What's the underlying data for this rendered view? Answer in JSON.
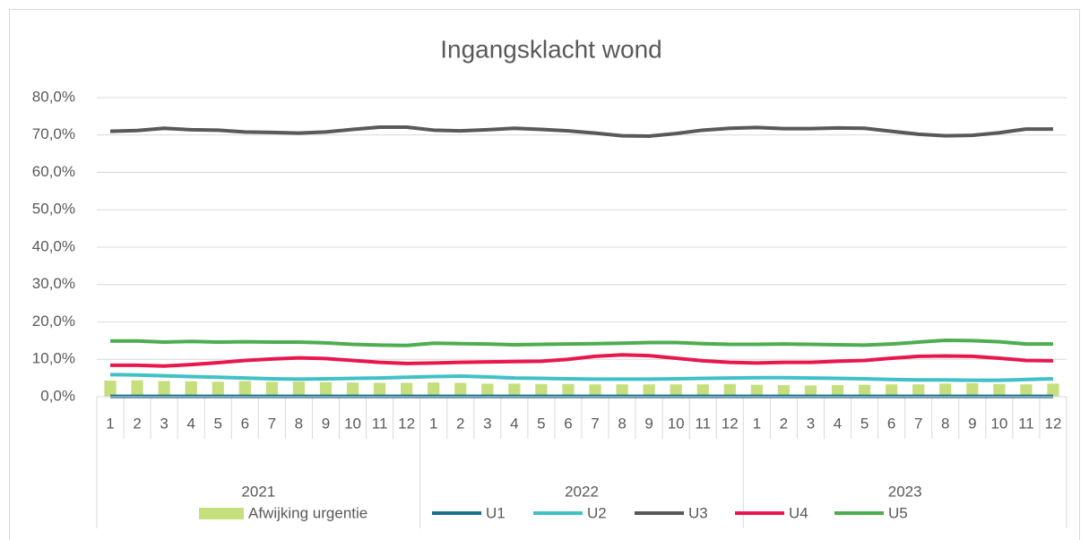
{
  "chart_data": {
    "type": "bar-line",
    "title": "Ingangsklacht wond",
    "categories": [
      "1",
      "2",
      "3",
      "4",
      "5",
      "6",
      "7",
      "8",
      "9",
      "10",
      "11",
      "12",
      "1",
      "2",
      "3",
      "4",
      "5",
      "6",
      "7",
      "8",
      "9",
      "10",
      "11",
      "12",
      "1",
      "2",
      "3",
      "4",
      "5",
      "6",
      "7",
      "8",
      "9",
      "10",
      "11",
      "12"
    ],
    "groups": [
      "2021",
      "2022",
      "2023"
    ],
    "ylim": [
      0,
      80
    ],
    "yticks": [
      {
        "value": 0,
        "label": "0,0%"
      },
      {
        "value": 10,
        "label": "10,0%"
      },
      {
        "value": 20,
        "label": "20,0%"
      },
      {
        "value": 30,
        "label": "30,0%"
      },
      {
        "value": 40,
        "label": "40,0%"
      },
      {
        "value": 50,
        "label": "50,0%"
      },
      {
        "value": 60,
        "label": "60,0%"
      },
      {
        "value": 70,
        "label": "70,0%"
      },
      {
        "value": 80,
        "label": "80,0%"
      }
    ],
    "grid": true,
    "legend": "bottom",
    "series": [
      {
        "name": "Afwijking urgentie",
        "type": "bar",
        "color": "#c4df7c",
        "values": [
          4.3,
          4.4,
          4.2,
          4.1,
          4.0,
          4.2,
          4.0,
          4.0,
          3.9,
          3.8,
          3.7,
          3.7,
          3.8,
          3.7,
          3.5,
          3.5,
          3.4,
          3.4,
          3.3,
          3.3,
          3.3,
          3.3,
          3.3,
          3.4,
          3.2,
          3.1,
          3.0,
          3.1,
          3.2,
          3.3,
          3.3,
          3.5,
          3.6,
          3.4,
          3.3,
          3.5
        ]
      },
      {
        "name": "U1",
        "type": "line",
        "color": "#1b6f8e",
        "values": [
          0.1,
          0.1,
          0.1,
          0.1,
          0.1,
          0.1,
          0.1,
          0.1,
          0.1,
          0.1,
          0.1,
          0.1,
          0.1,
          0.1,
          0.1,
          0.1,
          0.1,
          0.1,
          0.1,
          0.1,
          0.1,
          0.1,
          0.1,
          0.1,
          0.1,
          0.1,
          0.1,
          0.1,
          0.1,
          0.1,
          0.1,
          0.1,
          0.1,
          0.1,
          0.1,
          0.1
        ]
      },
      {
        "name": "U2",
        "type": "line",
        "color": "#40c1c8",
        "values": [
          5.9,
          5.8,
          5.6,
          5.4,
          5.2,
          5.0,
          4.8,
          4.7,
          4.8,
          4.9,
          5.0,
          5.2,
          5.4,
          5.5,
          5.3,
          5.0,
          4.9,
          4.8,
          4.7,
          4.7,
          4.7,
          4.8,
          4.9,
          5.0,
          5.1,
          5.1,
          5.0,
          4.9,
          4.8,
          4.6,
          4.5,
          4.5,
          4.4,
          4.4,
          4.6,
          4.8
        ]
      },
      {
        "name": "U3",
        "type": "line",
        "color": "#595959",
        "values": [
          71.0,
          71.2,
          71.8,
          71.4,
          71.3,
          70.8,
          70.7,
          70.5,
          70.8,
          71.5,
          72.1,
          72.1,
          71.3,
          71.1,
          71.4,
          71.8,
          71.5,
          71.1,
          70.5,
          69.8,
          69.7,
          70.4,
          71.3,
          71.8,
          72.0,
          71.7,
          71.7,
          71.9,
          71.8,
          71.0,
          70.2,
          69.8,
          69.9,
          70.6,
          71.6,
          71.6
        ]
      },
      {
        "name": "U4",
        "type": "line",
        "color": "#e8174e",
        "values": [
          8.4,
          8.4,
          8.2,
          8.6,
          9.1,
          9.7,
          10.1,
          10.4,
          10.2,
          9.7,
          9.2,
          8.9,
          9.0,
          9.2,
          9.3,
          9.4,
          9.5,
          10.0,
          10.8,
          11.2,
          11.0,
          10.3,
          9.6,
          9.2,
          9.0,
          9.2,
          9.2,
          9.5,
          9.7,
          10.3,
          10.8,
          10.9,
          10.8,
          10.3,
          9.7,
          9.6
        ]
      },
      {
        "name": "U5",
        "type": "line",
        "color": "#4cae4f",
        "values": [
          14.9,
          14.9,
          14.6,
          14.8,
          14.6,
          14.7,
          14.6,
          14.6,
          14.4,
          14.0,
          13.8,
          13.7,
          14.3,
          14.2,
          14.1,
          13.9,
          14.0,
          14.1,
          14.2,
          14.3,
          14.5,
          14.5,
          14.2,
          14.0,
          14.0,
          14.1,
          14.0,
          13.9,
          13.8,
          14.1,
          14.6,
          15.1,
          15.0,
          14.7,
          14.1,
          14.1
        ]
      }
    ]
  }
}
